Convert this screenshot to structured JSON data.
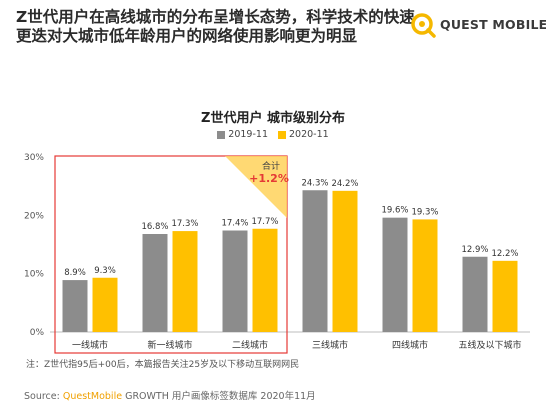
{
  "headline": "Z世代用户在高线城市的分布呈增长态势，科学技术的快速更迭对大城市低年龄用户的网络使用影响更为明显",
  "logo": {
    "text": "QUEST MOBILE",
    "icon": "questmobile-logo-icon",
    "color": "#f5b800"
  },
  "note": "注：Z世代指95后+00后，本篇报告关注25岁及以下移动互联网网民",
  "source": {
    "prefix": "Source:",
    "brand": "QuestMobile",
    "text": "GROWTH 用户画像标签数据库 2020年11月"
  },
  "chart_data": {
    "type": "bar",
    "title": "Z世代用户 城市级别分布",
    "categories": [
      "一线城市",
      "新一线城市",
      "二线城市",
      "三线城市",
      "四线城市",
      "五线及以下城市"
    ],
    "series": [
      {
        "name": "2019-11",
        "color": "#8c8c8c",
        "values": [
          8.9,
          16.8,
          17.4,
          24.3,
          19.6,
          12.9
        ],
        "labels": [
          "8.9%",
          "16.8%",
          "17.4%",
          "24.3%",
          "19.6%",
          "12.9%"
        ]
      },
      {
        "name": "2020-11",
        "color": "#ffc000",
        "values": [
          9.3,
          17.3,
          17.7,
          24.2,
          19.3,
          12.2
        ],
        "labels": [
          "9.3%",
          "17.3%",
          "17.7%",
          "24.2%",
          "19.3%",
          "12.2%"
        ]
      }
    ],
    "yticks": [
      "0%",
      "10%",
      "20%",
      "30%"
    ],
    "ylim": [
      0,
      30
    ],
    "grid": false,
    "legend": "top-center",
    "annotation": {
      "label": "合计",
      "value": "+1.2%",
      "color": "#e53935",
      "highlight_categories": [
        0,
        1,
        2
      ],
      "highlight_color": "#e53935",
      "badge_color": "#ffd25a"
    }
  }
}
